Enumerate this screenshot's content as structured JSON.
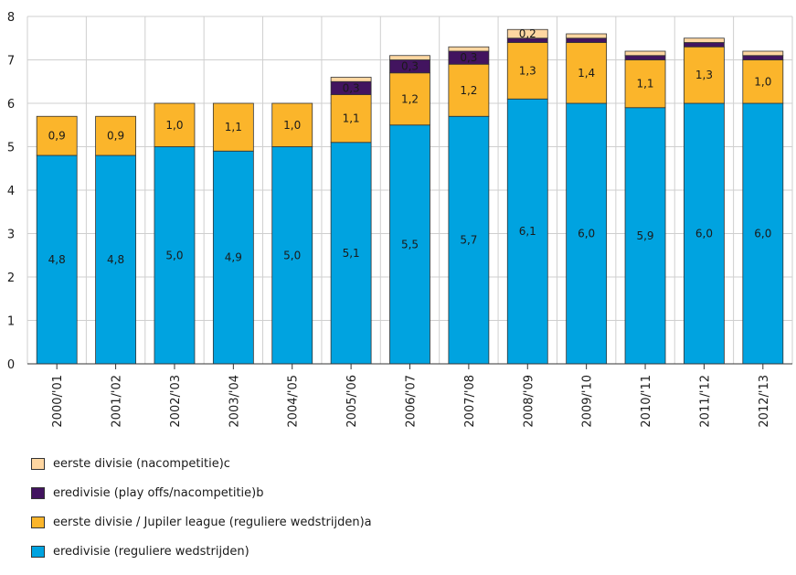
{
  "chart_data": {
    "type": "bar",
    "stacked": true,
    "categories": [
      "2000/'01",
      "2001/'02",
      "2002/'03",
      "2003/'04",
      "2004/'05",
      "2005/'06",
      "2006/'07",
      "2007/'08",
      "2008/'09",
      "2009/'10",
      "2010/'11",
      "2011/'12",
      "2012/'13"
    ],
    "series": [
      {
        "name": "eredivisie (reguliere wedstrijden)",
        "color": "#00a3e0",
        "values": [
          4.8,
          4.8,
          5.0,
          4.9,
          5.0,
          5.1,
          5.5,
          5.7,
          6.1,
          6.0,
          5.9,
          6.0,
          6.0
        ],
        "labels": [
          "4,8",
          "4,8",
          "5,0",
          "4,9",
          "5,0",
          "5,1",
          "5,5",
          "5,7",
          "6,1",
          "6,0",
          "5,9",
          "6,0",
          "6,0"
        ]
      },
      {
        "name": "eerste divisie / Jupiler league  (reguliere wedstrijden)a",
        "color": "#fbb52b",
        "values": [
          0.9,
          0.9,
          1.0,
          1.1,
          1.0,
          1.1,
          1.2,
          1.2,
          1.3,
          1.4,
          1.1,
          1.3,
          1.0
        ],
        "labels": [
          "0,9",
          "0,9",
          "1,0",
          "1,1",
          "1,0",
          "1,1",
          "1,2",
          "1,2",
          "1,3",
          "1,4",
          "1,1",
          "1,3",
          "1,0"
        ]
      },
      {
        "name": "eredivisie (play offs/nacompetitie)b",
        "color": "#42145f",
        "values": [
          0,
          0,
          0,
          0,
          0,
          0.3,
          0.3,
          0.3,
          0.1,
          0.1,
          0.1,
          0.1,
          0.1
        ],
        "labels": [
          "",
          "",
          "",
          "",
          "",
          "0,3",
          "0,3",
          "0,3",
          "",
          "",
          "",
          "",
          ""
        ]
      },
      {
        "name": "eerste divisie (nacompetitie)c",
        "color": "#fed6a1",
        "values": [
          0,
          0,
          0,
          0,
          0,
          0.1,
          0.1,
          0.1,
          0.2,
          0.1,
          0.1,
          0.1,
          0.1
        ],
        "labels": [
          "",
          "",
          "",
          "",
          "",
          "",
          "",
          "",
          "0,2",
          "",
          "",
          "",
          ""
        ]
      }
    ],
    "y_ticks": [
      "0",
      "1",
      "2",
      "3",
      "4",
      "5",
      "6",
      "7",
      "8"
    ],
    "ylim": [
      0,
      8
    ],
    "grid": true,
    "legend_position": "bottom-left"
  }
}
